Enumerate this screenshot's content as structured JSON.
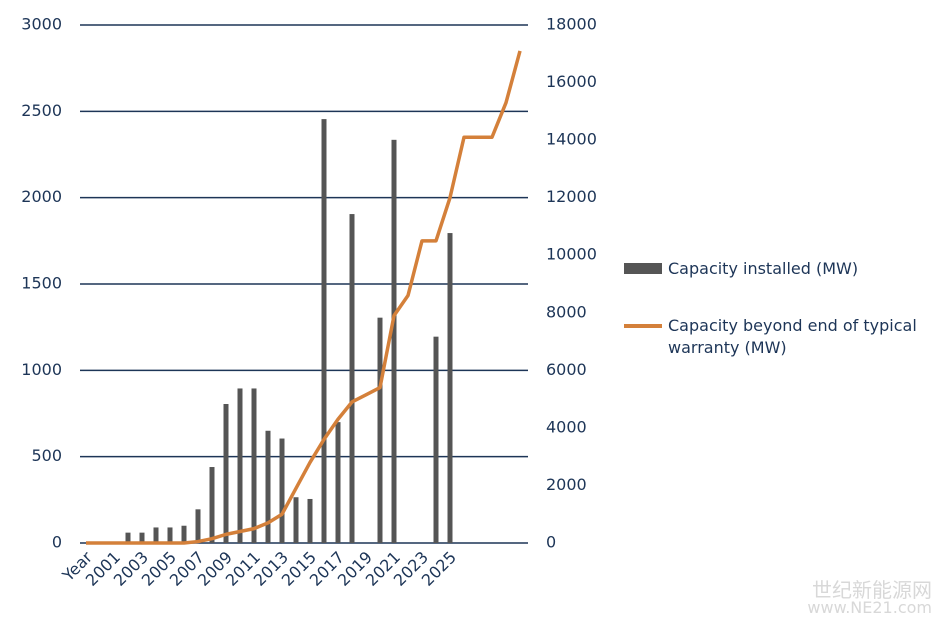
{
  "chart_data": {
    "type": "bar-line",
    "categories": [
      "Year",
      null,
      "2001",
      null,
      "2003",
      null,
      "2005",
      null,
      "2007",
      null,
      "2009",
      null,
      "2011",
      null,
      "2013",
      null,
      "2015",
      null,
      "2017",
      null,
      "2019",
      null,
      "2021",
      null,
      "2023",
      null,
      "2025",
      null,
      null,
      null,
      null,
      null
    ],
    "series": [
      {
        "name": "Capacity installed (MW)",
        "color": "#555555",
        "kind": "bar",
        "values": [
          null,
          null,
          null,
          60,
          60,
          90,
          90,
          100,
          195,
          440,
          805,
          895,
          895,
          650,
          605,
          265,
          255,
          2455,
          700,
          1905,
          null,
          1305,
          2335,
          null,
          null,
          1195,
          1795,
          null,
          null,
          null,
          null,
          null
        ]
      },
      {
        "name": "Capacity beyond end of typical warranty (MW)",
        "color": "#d4803a",
        "kind": "line",
        "axis": "y2",
        "values": [
          0,
          0,
          0,
          0,
          0,
          0,
          0,
          0,
          50,
          150,
          300,
          400,
          500,
          700,
          1000,
          1900,
          2800,
          3600,
          4300,
          4900,
          5150,
          5400,
          7900,
          8600,
          10500,
          10500,
          12000,
          14100,
          14100,
          14100,
          15300,
          17100
        ]
      }
    ],
    "ylim": [
      0,
      3000
    ],
    "yticks": [
      0,
      500,
      1000,
      1500,
      2000,
      2500,
      3000
    ],
    "y2lim": [
      0,
      18000
    ],
    "y2ticks": [
      0,
      2000,
      4000,
      6000,
      8000,
      10000,
      12000,
      14000,
      16000,
      18000
    ],
    "grid": true,
    "grid_color": "#1d3557",
    "legend": "right"
  },
  "watermark": [
    "世纪新能源网",
    "www.NE21.com"
  ]
}
